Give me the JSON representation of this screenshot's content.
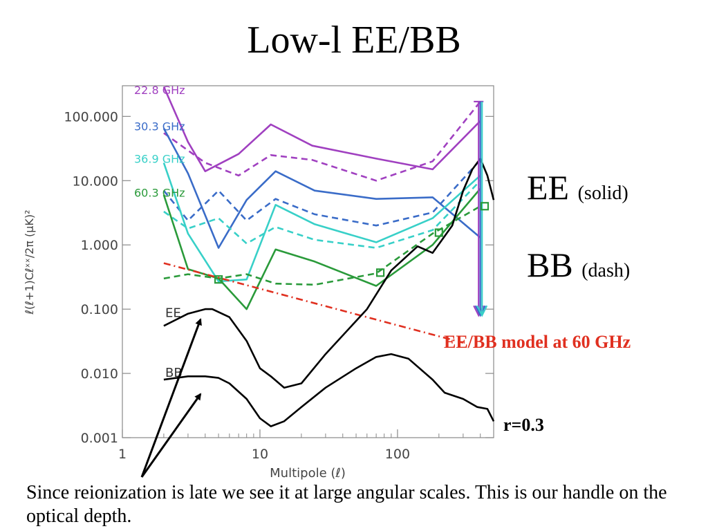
{
  "slide": {
    "title": "Low-l EE/BB",
    "ee_label": "EE",
    "ee_note": "(solid)",
    "bb_label": "BB",
    "bb_note": "(dash)",
    "model_label": "EE/BB model at 60 GHz",
    "r_label": "r=0.3",
    "caption": "Since reionization is late we see it at large angular scales.  This is our handle on the optical depth."
  },
  "chart_data": {
    "type": "line",
    "xlabel": "Multipole (ℓ)",
    "ylabel": "ℓ(ℓ+1)Cℓˣˣ/2π   (μK)²",
    "xscale": "log",
    "yscale": "log",
    "xlim": [
      1,
      500
    ],
    "ylim": [
      0.001,
      300
    ],
    "x_ticks": [
      {
        "v": 1,
        "label": "1"
      },
      {
        "v": 10,
        "label": "10"
      },
      {
        "v": 100,
        "label": "100"
      }
    ],
    "y_ticks": [
      {
        "v": 0.001,
        "label": "0.001"
      },
      {
        "v": 0.01,
        "label": "0.010"
      },
      {
        "v": 0.1,
        "label": "0.100"
      },
      {
        "v": 1,
        "label": "1.000"
      },
      {
        "v": 10,
        "label": "10.000"
      },
      {
        "v": 100,
        "label": "100.000"
      }
    ],
    "band_labels": [
      {
        "text": "22.8 GHz",
        "color": "#a040c0",
        "y": 260
      },
      {
        "text": "30.3 GHz",
        "color": "#3a6cc8",
        "y": 70
      },
      {
        "text": "36.9 GHz",
        "color": "#38d0c8",
        "y": 22
      },
      {
        "text": "60.3 GHz",
        "color": "#2a9a3a",
        "y": 6.5
      }
    ],
    "series": [
      {
        "name": "22.8 GHz",
        "pol": "EE",
        "color": "#a040c0",
        "dash": false,
        "x": [
          2,
          3,
          4,
          7,
          12,
          24,
          70,
          180,
          400
        ],
        "y": [
          290,
          40,
          14,
          26,
          75,
          35,
          22,
          15,
          85
        ]
      },
      {
        "name": "22.8 GHz",
        "pol": "BB",
        "color": "#a040c0",
        "dash": true,
        "x": [
          2,
          4,
          7,
          12,
          24,
          70,
          180,
          400
        ],
        "y": [
          55,
          19,
          12,
          25,
          21,
          10,
          20,
          170
        ]
      },
      {
        "name": "30.3 GHz",
        "pol": "EE",
        "color": "#3a6cc8",
        "dash": false,
        "x": [
          2,
          3,
          5,
          8,
          13,
          25,
          70,
          180,
          400
        ],
        "y": [
          65,
          13,
          0.9,
          5,
          14,
          7,
          5.2,
          5.5,
          1.3
        ]
      },
      {
        "name": "30.3 GHz",
        "pol": "BB",
        "color": "#3a6cc8",
        "dash": true,
        "x": [
          2,
          3,
          5,
          8,
          13,
          25,
          70,
          180,
          400
        ],
        "y": [
          7,
          2.4,
          7,
          2.4,
          5.2,
          3,
          2,
          3.2,
          21
        ]
      },
      {
        "name": "36.9 GHz",
        "pol": "EE",
        "color": "#38d0c8",
        "dash": false,
        "x": [
          2,
          3,
          5,
          8,
          13,
          25,
          70,
          180,
          400
        ],
        "y": [
          19,
          1.5,
          0.27,
          0.29,
          4.2,
          2.1,
          1.1,
          2.6,
          12
        ]
      },
      {
        "name": "36.9 GHz",
        "pol": "BB",
        "color": "#38d0c8",
        "dash": true,
        "x": [
          2,
          3,
          5,
          8,
          13,
          25,
          70,
          180,
          400
        ],
        "y": [
          3.3,
          1.8,
          2.6,
          1.05,
          1.9,
          1.2,
          0.9,
          1.7,
          10
        ]
      },
      {
        "name": "60.3 GHz",
        "pol": "EE",
        "color": "#2a9a3a",
        "dash": false,
        "x": [
          2,
          3,
          5,
          8,
          13,
          25,
          70,
          180,
          400
        ],
        "y": [
          6,
          0.42,
          0.3,
          0.1,
          0.85,
          0.55,
          0.23,
          1,
          7.5
        ]
      },
      {
        "name": "60.3 GHz",
        "pol": "BB",
        "color": "#2a9a3a",
        "dash": true,
        "x": [
          2,
          3,
          5,
          8,
          13,
          25,
          70,
          180,
          400
        ],
        "y": [
          0.3,
          0.35,
          0.3,
          0.35,
          0.25,
          0.24,
          0.36,
          1.5,
          4
        ]
      },
      {
        "name": "EE/BB model at 60 GHz",
        "color": "#e03020",
        "dash": "dashdot",
        "x": [
          2,
          300
        ],
        "y": [
          0.52,
          0.03
        ]
      },
      {
        "name": "EE",
        "color": "#000000",
        "dash": false,
        "x": [
          2,
          3,
          4,
          4.5,
          6,
          8,
          10,
          12,
          15,
          20,
          30,
          60,
          90,
          140,
          180,
          250,
          300,
          350,
          400,
          450,
          500
        ],
        "y": [
          0.055,
          0.085,
          0.1,
          0.1,
          0.075,
          0.032,
          0.012,
          0.009,
          0.006,
          0.007,
          0.02,
          0.1,
          0.4,
          0.95,
          0.75,
          2,
          7,
          15,
          22,
          12,
          5
        ]
      },
      {
        "name": "BB",
        "color": "#000000",
        "dash": false,
        "x": [
          2,
          3,
          4,
          5,
          6,
          8,
          10,
          12,
          15,
          20,
          30,
          50,
          70,
          90,
          120,
          180,
          220,
          300,
          380,
          450,
          500
        ],
        "y": [
          0.008,
          0.009,
          0.009,
          0.0085,
          0.007,
          0.004,
          0.002,
          0.0015,
          0.0018,
          0.003,
          0.006,
          0.012,
          0.018,
          0.02,
          0.017,
          0.008,
          0.005,
          0.004,
          0.003,
          0.0028,
          0.0018
        ]
      }
    ],
    "markers": [
      {
        "x": 5,
        "y": 0.29,
        "color": "#2a9a3a"
      },
      {
        "x": 75,
        "y": 0.37,
        "color": "#2a9a3a"
      },
      {
        "x": 200,
        "y": 1.55,
        "color": "#2a9a3a"
      },
      {
        "x": 430,
        "y": 4,
        "color": "#2a9a3a"
      }
    ],
    "curve_labels": [
      {
        "text": "EE",
        "x": 2.05,
        "y": 0.075
      },
      {
        "text": "BB",
        "x": 2.05,
        "y": 0.0088
      }
    ],
    "upper_limits": {
      "x": 400,
      "top": 170,
      "bottom": 0.08,
      "colors": [
        "#a040c0",
        "#3a6cc8",
        "#38d0c8"
      ]
    }
  }
}
